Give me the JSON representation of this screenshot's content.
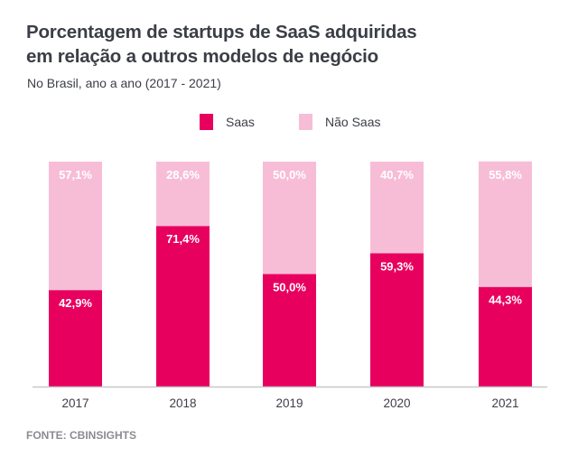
{
  "chart_data": {
    "type": "bar",
    "stacked": true,
    "title": "Porcentagem de startups de SaaS adquiridas em relação a outros modelos de negócio",
    "title_lines": [
      "Porcentagem de startups de SaaS adquiridas",
      "em relação a outros modelos de negócio"
    ],
    "subtitle": "No Brasil, ano a ano (2017 - 2021)",
    "categories": [
      "2017",
      "2018",
      "2019",
      "2020",
      "2021"
    ],
    "series": [
      {
        "name": "Saas",
        "color": "#E8005F",
        "values": [
          42.9,
          71.4,
          50.0,
          59.3,
          44.3
        ],
        "labels": [
          "42,9%",
          "71,4%",
          "50,0%",
          "59,3%",
          "44,3%"
        ]
      },
      {
        "name": "Não Saas",
        "color": "#F7BDD6",
        "values": [
          57.1,
          28.6,
          50.0,
          40.7,
          55.8
        ],
        "labels": [
          "57,1%",
          "28,6%",
          "50,0%",
          "40,7%",
          "55,8%"
        ]
      }
    ],
    "ylim": [
      0,
      100
    ],
    "grid": false,
    "legend_position": "top-center",
    "source": "FONTE: CBINSIGHTS"
  }
}
